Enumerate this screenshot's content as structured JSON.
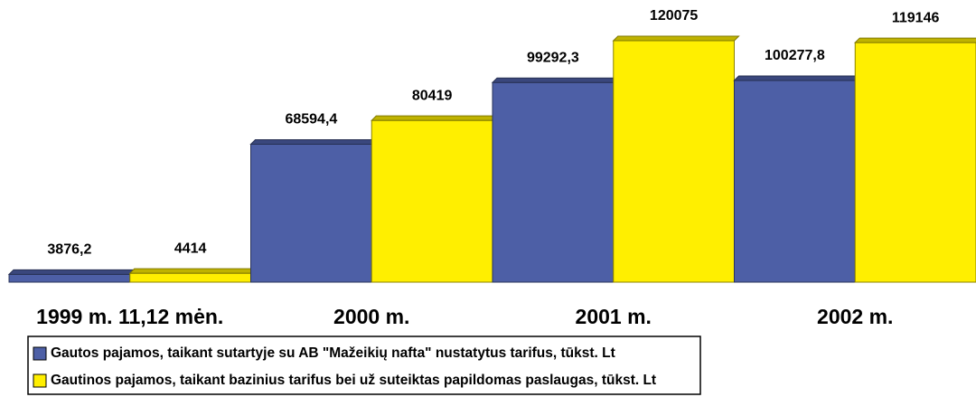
{
  "chart_data": {
    "type": "bar",
    "categories": [
      "1999 m. 11,12 mėn.",
      "2000 m.",
      "2001 m.",
      "2002 m."
    ],
    "series": [
      {
        "name": "Gautos pajamos, taikant sutartyje su AB \"Mažeikių nafta\" nustatytus tarifus, tūkst. Lt",
        "color": "#4d5fa6",
        "values": [
          3876.2,
          68594.4,
          99292.3,
          100277.8
        ],
        "value_labels": [
          "3876,2",
          "68594,4",
          "99292,3",
          "100277,8"
        ]
      },
      {
        "name": "Gautinos pajamos, taikant bazinius tarifus bei už suteiktas papildomas paslaugas, tūkst. Lt",
        "color": "#ffef00",
        "values": [
          4414,
          80419,
          120075,
          119146
        ]
      }
    ]
  }
}
